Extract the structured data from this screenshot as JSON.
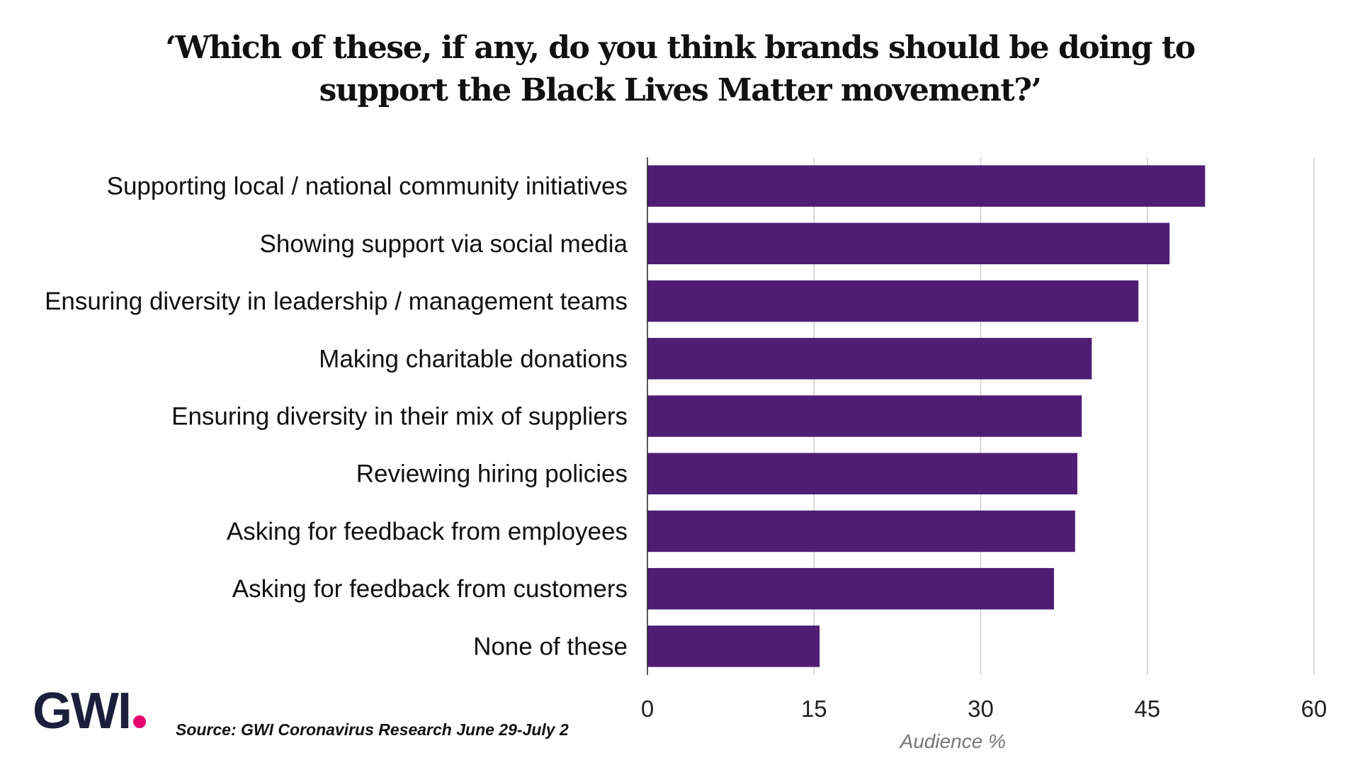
{
  "title_line1": "‘Which of these, if any, do you think brands should be doing to",
  "title_line2": "support the Black Lives Matter movement?’",
  "logo": {
    "text": "GWI",
    "dot_color": "#e5006e",
    "text_color": "#1c1f3b"
  },
  "source": {
    "prefix": "Source:",
    "text": "GWI Coronavirus Research June 29-July 2"
  },
  "colors": {
    "bar": "#4f1e74",
    "grid": "#cccccc",
    "axis": "#222222"
  },
  "chart_data": {
    "type": "bar",
    "orientation": "horizontal",
    "categories": [
      "Supporting local / national community initiatives",
      "Showing support via social media",
      "Ensuring diversity in leadership / management teams",
      "Making charitable donations",
      "Ensuring diversity in their mix of suppliers",
      "Reviewing hiring policies",
      "Asking for feedback from employees",
      "Asking for feedback from customers",
      "None of these"
    ],
    "values": [
      50.2,
      47,
      44.2,
      40,
      39.1,
      38.7,
      38.5,
      36.6,
      15.5
    ],
    "xlabel": "Audience %",
    "ylabel": "",
    "xlim": [
      0,
      60
    ],
    "xticks": [
      0,
      15,
      30,
      45,
      60
    ],
    "grid": "vertical"
  }
}
